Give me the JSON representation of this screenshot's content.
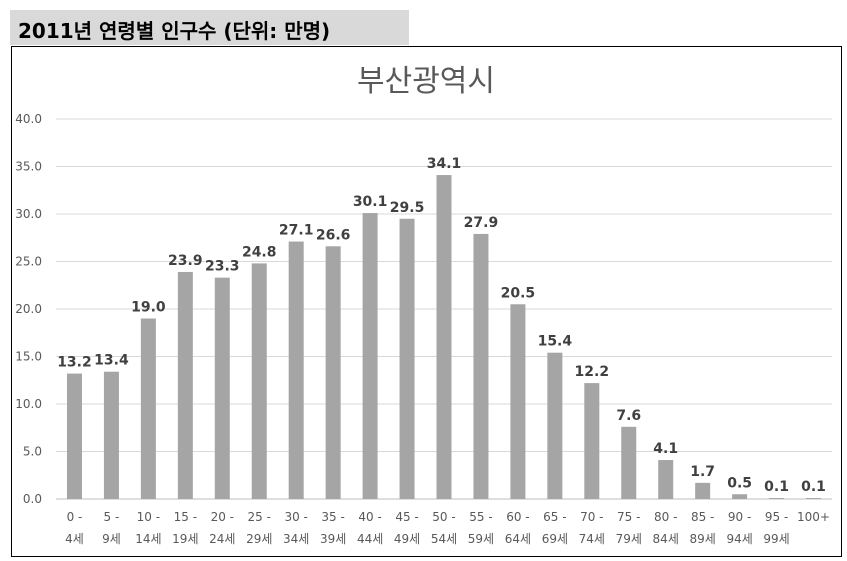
{
  "header": {
    "title": "2011년 연령별 인구수 (단위: 만명)"
  },
  "chart_data": {
    "type": "bar",
    "title": "부산광역시",
    "xlabel": "",
    "ylabel": "",
    "ylim": [
      0,
      40
    ],
    "yticks": [
      "0.0",
      "5.0",
      "10.0",
      "15.0",
      "20.0",
      "25.0",
      "30.0",
      "35.0",
      "40.0"
    ],
    "grid": true,
    "bar_color": "#a5a5a5",
    "categories": [
      [
        "0 -",
        "4세"
      ],
      [
        "5 -",
        "9세"
      ],
      [
        "10 -",
        "14세"
      ],
      [
        "15 -",
        "19세"
      ],
      [
        "20 -",
        "24세"
      ],
      [
        "25 -",
        "29세"
      ],
      [
        "30 -",
        "34세"
      ],
      [
        "35 -",
        "39세"
      ],
      [
        "40 -",
        "44세"
      ],
      [
        "45 -",
        "49세"
      ],
      [
        "50 -",
        "54세"
      ],
      [
        "55 -",
        "59세"
      ],
      [
        "60 -",
        "64세"
      ],
      [
        "65 -",
        "69세"
      ],
      [
        "70 -",
        "74세"
      ],
      [
        "75 -",
        "79세"
      ],
      [
        "80 -",
        "84세"
      ],
      [
        "85 -",
        "89세"
      ],
      [
        "90 -",
        "94세"
      ],
      [
        "95 -",
        "99세"
      ],
      [
        "100+",
        ""
      ]
    ],
    "values": [
      13.2,
      13.4,
      19.0,
      23.9,
      23.3,
      24.8,
      27.1,
      26.6,
      30.1,
      29.5,
      34.1,
      27.9,
      20.5,
      15.4,
      12.2,
      7.6,
      4.1,
      1.7,
      0.5,
      0.1,
      0.1
    ],
    "data_labels": [
      "13.2",
      "13.4",
      "19.0",
      "23.9",
      "23.3",
      "24.8",
      "27.1",
      "26.6",
      "30.1",
      "29.5",
      "34.1",
      "27.9",
      "20.5",
      "15.4",
      "12.2",
      "7.6",
      "4.1",
      "1.7",
      "0.5",
      "0.1",
      "0.1"
    ]
  }
}
